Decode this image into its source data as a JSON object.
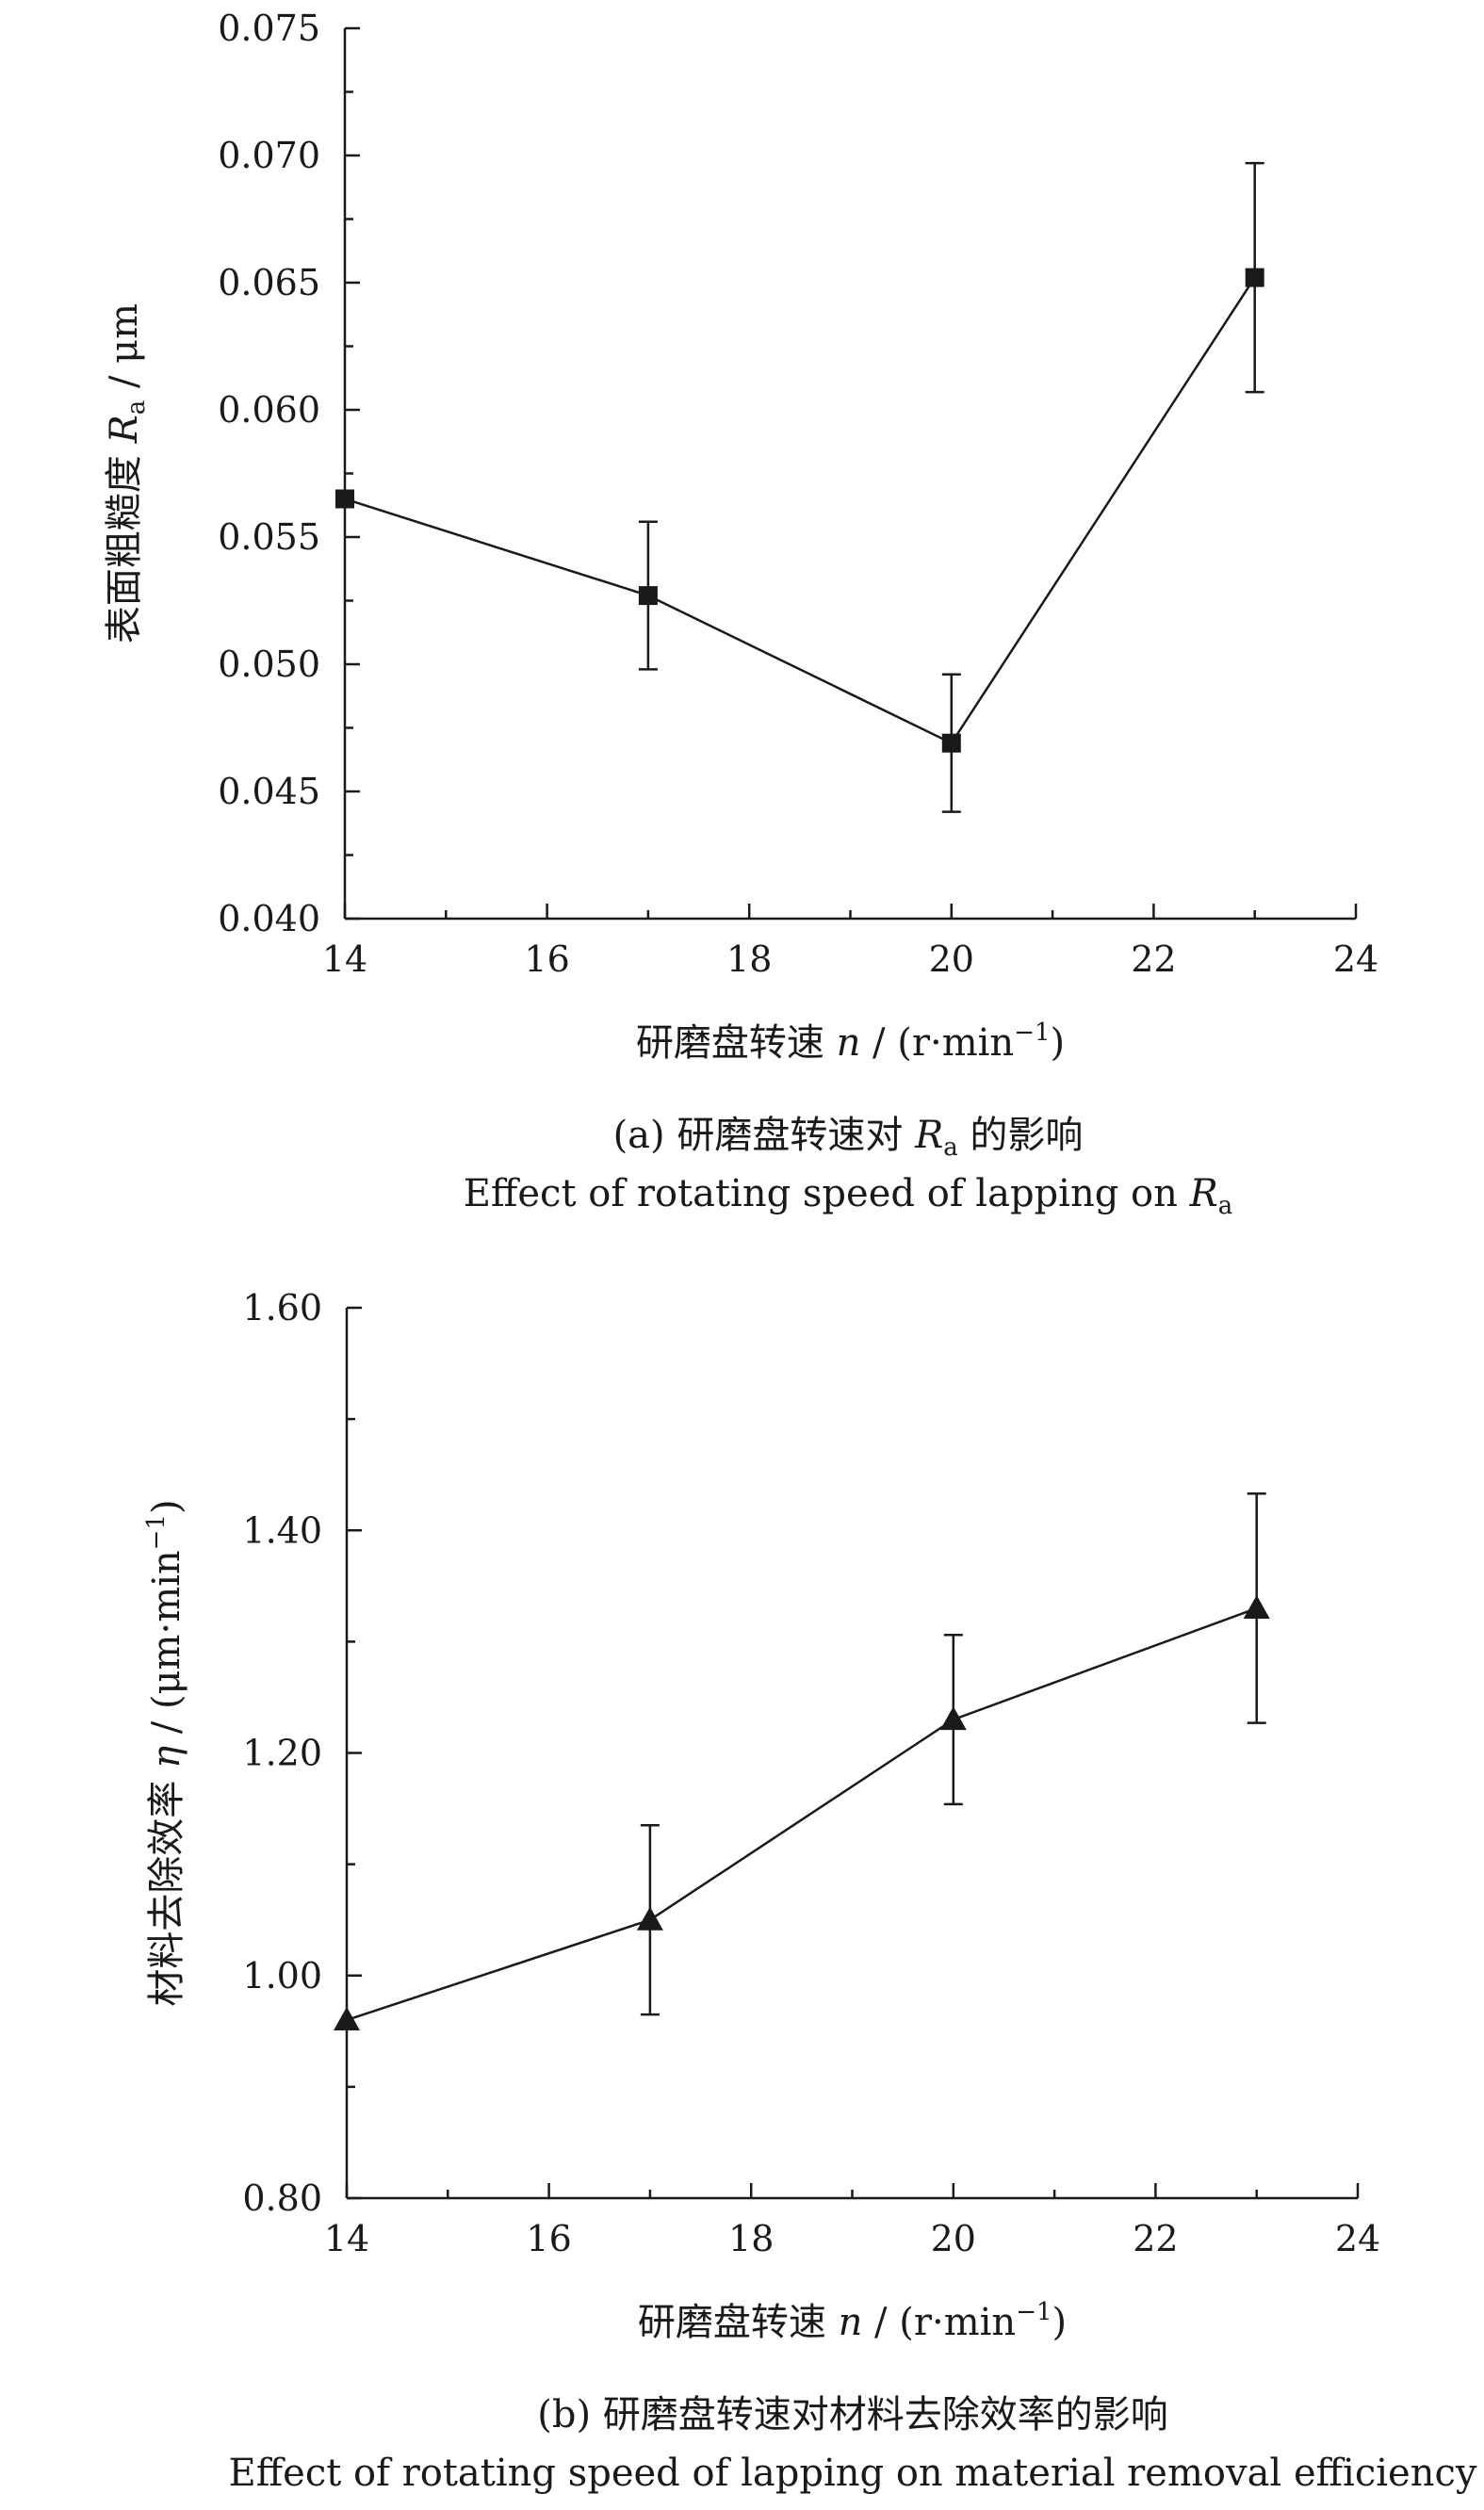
{
  "chart_data": [
    {
      "type": "line",
      "marker": "square",
      "ylabel": {
        "pre": "表面粗糙度 ",
        "sym": "R",
        "sub": "a",
        "post": " / μm"
      },
      "xlabel": {
        "pre": "研磨盘转速 ",
        "sym": "n",
        "post": " / (r·min",
        "sup": "−1",
        "end": ")"
      },
      "caption": {
        "line1": {
          "pre": "(a) 研磨盘转速对 ",
          "sym": "R",
          "sub": "a",
          "post": " 的影响"
        },
        "line2": {
          "pre": "Effect of rotating speed of lapping on ",
          "sym": "R",
          "sub": "a",
          "post": ""
        }
      },
      "xlim": [
        14,
        24
      ],
      "ylim": [
        0.04,
        0.075
      ],
      "xticks": [
        "14",
        "16",
        "18",
        "20",
        "22",
        "24"
      ],
      "yticks": [
        "0.040",
        "0.045",
        "0.050",
        "0.055",
        "0.060",
        "0.065",
        "0.070",
        "0.075"
      ],
      "series": [
        {
          "x": [
            14,
            17,
            20,
            23
          ],
          "y": [
            0.0565,
            0.0527,
            0.0469,
            0.0652
          ],
          "err": [
            0,
            0.0029,
            0.0027,
            0.0045
          ]
        }
      ]
    },
    {
      "type": "line",
      "marker": "triangle",
      "ylabel": {
        "pre": "材料去除效率 ",
        "sym": "η",
        "post": " / (μm·min",
        "sup": "−1",
        "end": ")"
      },
      "xlabel": {
        "pre": "研磨盘转速 ",
        "sym": "n",
        "post": " / (r·min",
        "sup": "−1",
        "end": ")"
      },
      "caption": {
        "line1": {
          "pre": "(b) 研磨盘转速对材料去除效率的影响"
        },
        "line2": {
          "pre": "Effect of rotating speed of lapping on material removal efficiency"
        }
      },
      "xlim": [
        14,
        24
      ],
      "ylim": [
        0.8,
        1.6
      ],
      "xticks": [
        "14",
        "16",
        "18",
        "20",
        "22",
        "24"
      ],
      "yticks": [
        "0.80",
        "1.00",
        "1.20",
        "1.40",
        "1.60"
      ],
      "series": [
        {
          "x": [
            14,
            17,
            20,
            23
          ],
          "y": [
            0.96,
            1.05,
            1.23,
            1.33
          ],
          "err": [
            0,
            0.085,
            0.076,
            0.103
          ]
        }
      ]
    }
  ]
}
